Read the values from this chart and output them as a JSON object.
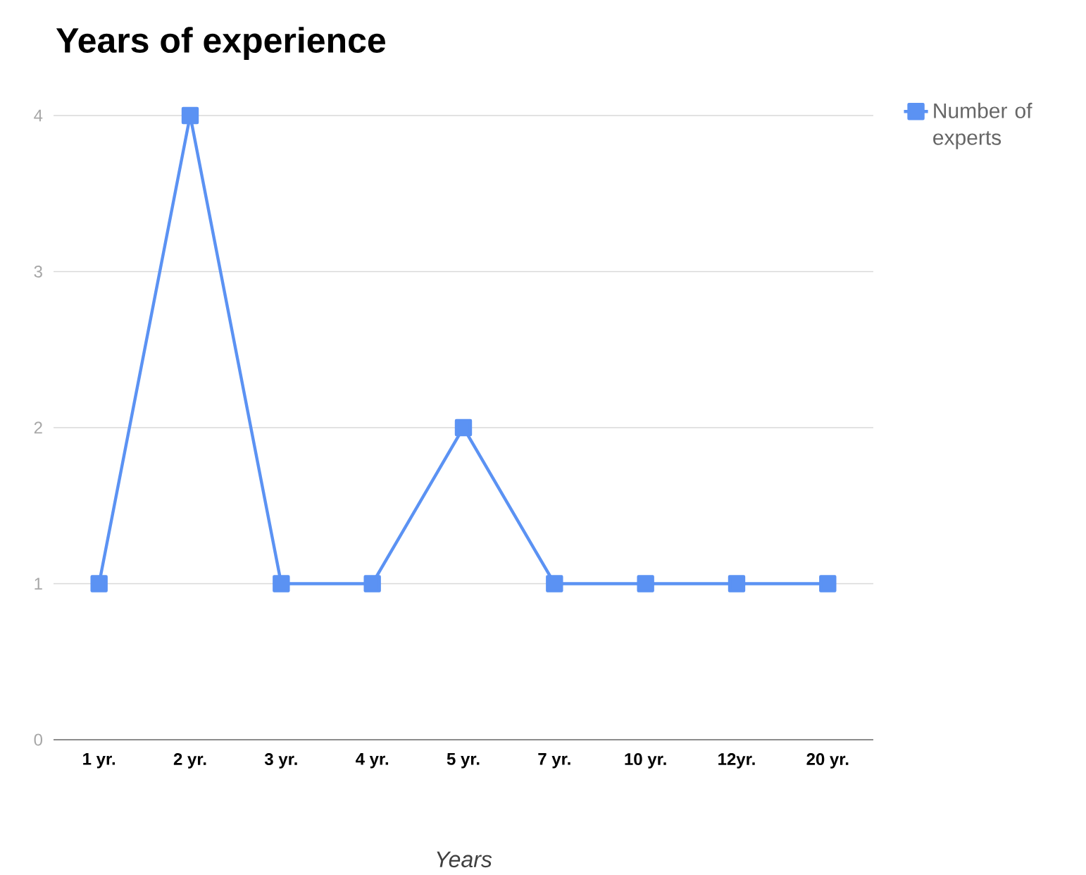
{
  "chart_data": {
    "type": "line",
    "title": "Years of experience",
    "xlabel": "Years",
    "categories": [
      "1 yr.",
      "2 yr.",
      "3 yr.",
      "4 yr.",
      "5 yr.",
      "7 yr.",
      "10 yr.",
      "12yr.",
      "20 yr."
    ],
    "series": [
      {
        "name": "Number of experts",
        "color": "#5b92f3",
        "values": [
          1,
          4,
          1,
          1,
          2,
          1,
          1,
          1,
          1
        ]
      }
    ],
    "ylim": [
      0,
      4
    ],
    "yticks": [
      0,
      1,
      2,
      3,
      4
    ],
    "grid": "y",
    "legend": "top right",
    "marker": "square"
  }
}
